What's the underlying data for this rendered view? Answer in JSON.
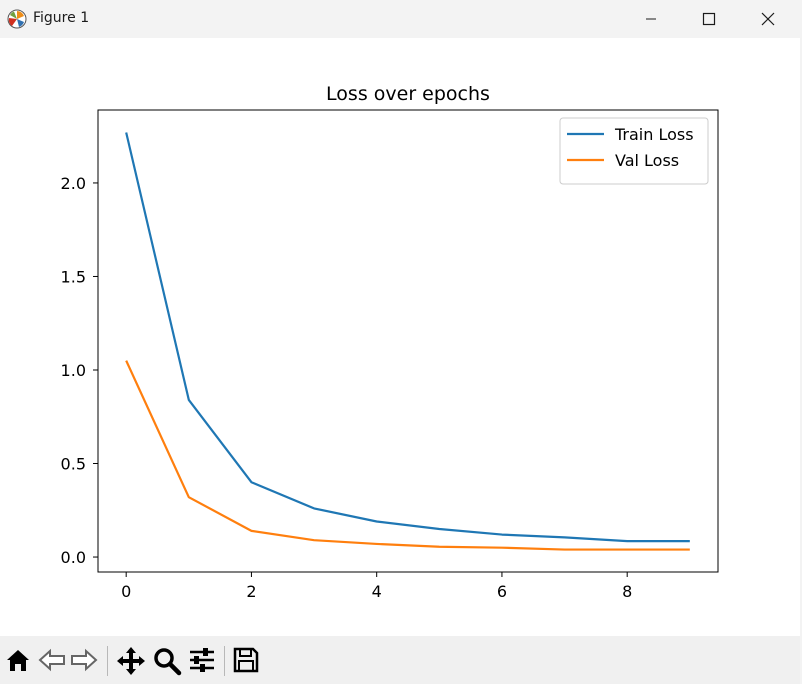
{
  "window": {
    "title": "Figure 1"
  },
  "toolbar": {
    "buttons": [
      {
        "name": "home-icon"
      },
      {
        "name": "back-arrow-icon"
      },
      {
        "name": "forward-arrow-icon"
      },
      {
        "name": "pan-icon"
      },
      {
        "name": "zoom-icon"
      },
      {
        "name": "configure-subplots-icon"
      },
      {
        "name": "save-icon"
      }
    ]
  },
  "chart_data": {
    "type": "line",
    "title": "Loss over epochs",
    "xlabel": "",
    "ylabel": "",
    "x": [
      0,
      1,
      2,
      3,
      4,
      5,
      6,
      7,
      8,
      9
    ],
    "xlim": [
      -0.45,
      9.45
    ],
    "ylim": [
      -0.08,
      2.39
    ],
    "xticks": [
      0,
      2,
      4,
      6,
      8
    ],
    "xtick_labels": [
      "0",
      "2",
      "4",
      "6",
      "8"
    ],
    "yticks": [
      0.0,
      0.5,
      1.0,
      1.5,
      2.0
    ],
    "ytick_labels": [
      "0.0",
      "0.5",
      "1.0",
      "1.5",
      "2.0"
    ],
    "grid": false,
    "legend_position": "top-right",
    "series": [
      {
        "name": "Train Loss",
        "color": "#1f77b4",
        "values": [
          2.27,
          0.84,
          0.4,
          0.26,
          0.19,
          0.15,
          0.12,
          0.105,
          0.085,
          0.085
        ]
      },
      {
        "name": "Val Loss",
        "color": "#ff7f0e",
        "values": [
          1.05,
          0.32,
          0.14,
          0.09,
          0.07,
          0.055,
          0.05,
          0.04,
          0.04,
          0.04
        ]
      }
    ]
  }
}
